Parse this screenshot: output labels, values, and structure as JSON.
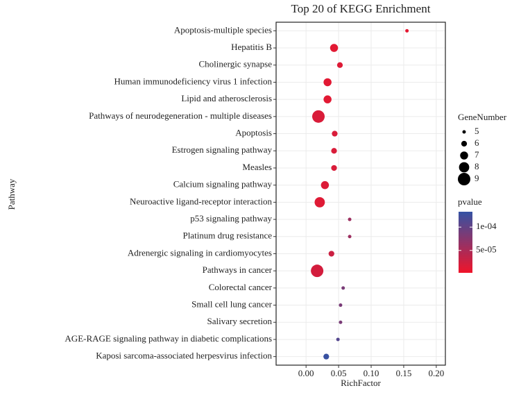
{
  "chart_data": {
    "type": "scatter",
    "title": "Top 20 of KEGG Enrichment",
    "x_label": "RichFactor",
    "y_label": "Pathway",
    "categories": [
      "Apoptosis-multiple species",
      "Hepatitis B",
      "Cholinergic synapse",
      "Human immunodeficiency virus 1 infection",
      "Lipid and atherosclerosis",
      "Pathways of neurodegeneration - multiple diseases",
      "Apoptosis",
      "Estrogen signaling pathway",
      "Measles",
      "Calcium signaling pathway",
      "Neuroactive ligand-receptor interaction",
      "p53 signaling pathway",
      "Platinum drug resistance",
      "Adrenergic signaling in cardiomyocytes",
      "Pathways in cancer",
      "Colorectal cancer",
      "Small cell lung cancer",
      "Salivary secretion",
      "AGE-RAGE signaling pathway in diabetic complications",
      "Kaposi sarcoma-associated herpesvirus infection"
    ],
    "values": [
      0.155,
      0.043,
      0.052,
      0.033,
      0.033,
      0.019,
      0.044,
      0.043,
      0.043,
      0.029,
      0.021,
      0.067,
      0.067,
      0.039,
      0.017,
      0.057,
      0.053,
      0.053,
      0.049,
      0.031
    ],
    "sizes": [
      5,
      7,
      6,
      7,
      7,
      9,
      6,
      6,
      6,
      7,
      8,
      5,
      5,
      6,
      9,
      5,
      5,
      5,
      5,
      6
    ],
    "pvalues": [
      1e-05,
      1.2e-05,
      1.5e-05,
      1.2e-05,
      1.2e-05,
      1.8e-05,
      1.8e-05,
      1.8e-05,
      1.8e-05,
      1.6e-05,
      1.4e-05,
      6e-05,
      6e-05,
      2.8e-05,
      2.2e-05,
      8.5e-05,
      8.5e-05,
      8.5e-05,
      0.00011,
      0.00013
    ],
    "xlim": [
      -0.046,
      0.214
    ],
    "xticks": [
      {
        "value": 0,
        "label": "0.00"
      },
      0.05,
      {
        "value": 0.1,
        "label": "0.10"
      },
      0.15,
      {
        "value": 0.2,
        "label": "0.20"
      }
    ],
    "grid": true,
    "size_legend": {
      "title": "GeneNumber",
      "values": [
        5,
        6,
        7,
        8,
        9
      ]
    },
    "color_legend": {
      "title": "pvalue",
      "low_color": "#f0142a",
      "high_color": "#3452a4",
      "lim": [
        2e-06,
        0.000133
      ],
      "ticks": [
        {
          "value": 0.0001,
          "label": "1e-04"
        },
        {
          "value": 5e-05,
          "label": "5e-05"
        }
      ]
    }
  }
}
